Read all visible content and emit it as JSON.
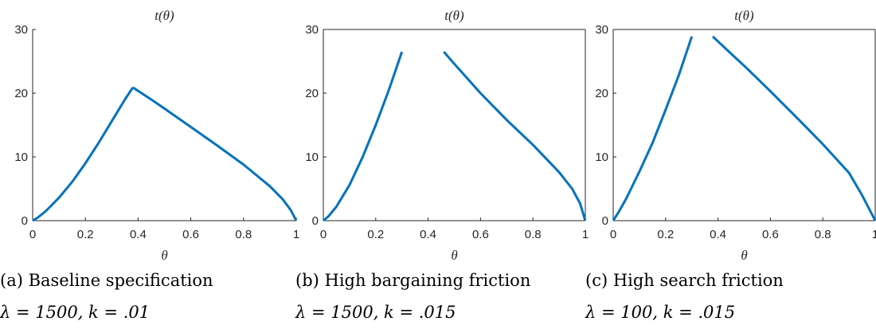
{
  "chart_data": [
    {
      "type": "line",
      "title": "t(θ)",
      "xlabel": "θ",
      "ylabel": "",
      "xlim": [
        0,
        1
      ],
      "ylim": [
        0,
        30
      ],
      "xticks": [
        "0",
        "0.2",
        "0.4",
        "0.6",
        "0.8",
        "1"
      ],
      "yticks": [
        "0",
        "10",
        "20",
        "30"
      ],
      "y_axis_side": "left",
      "box": "open",
      "caption": "(a) Baseline specification",
      "params": "λ = 1500, k = .01",
      "color": "#0072BD",
      "segments": [
        {
          "x": [
            0,
            0.02,
            0.05,
            0.1,
            0.15,
            0.2,
            0.25,
            0.3,
            0.35,
            0.38
          ],
          "y": [
            0,
            0.5,
            1.5,
            3.6,
            6.1,
            9.0,
            12.2,
            15.6,
            19.0,
            20.9
          ]
        },
        {
          "x": [
            0.38,
            0.45,
            0.5,
            0.6,
            0.7,
            0.8,
            0.9,
            0.95,
            0.98,
            1.0
          ],
          "y": [
            20.9,
            19.0,
            17.6,
            14.7,
            11.8,
            8.8,
            5.4,
            3.3,
            1.6,
            0
          ]
        }
      ]
    },
    {
      "type": "line",
      "title": "t(θ)",
      "xlabel": "θ",
      "ylabel": "",
      "xlim": [
        0,
        1
      ],
      "ylim": [
        0,
        30
      ],
      "xticks": [
        "0",
        "0.2",
        "0.4",
        "0.6",
        "0.8",
        "1"
      ],
      "yticks": [
        "0",
        "10",
        "20",
        "30"
      ],
      "y_axis_side": "left",
      "box": "full",
      "caption": "(b) High bargaining friction",
      "params": "λ = 1500, k = .015",
      "color": "#0072BD",
      "segments": [
        {
          "x": [
            0,
            0.02,
            0.05,
            0.1,
            0.15,
            0.2,
            0.25,
            0.3
          ],
          "y": [
            0,
            0.7,
            2.2,
            5.6,
            10.0,
            15.0,
            20.5,
            26.5
          ]
        },
        {
          "x": [
            0.46,
            0.5,
            0.6,
            0.7,
            0.8,
            0.9,
            0.95,
            0.98,
            1.0
          ],
          "y": [
            26.5,
            24.6,
            20.0,
            15.8,
            11.9,
            7.6,
            5.0,
            2.7,
            0
          ]
        }
      ]
    },
    {
      "type": "line",
      "title": "t(θ)",
      "xlabel": "θ",
      "ylabel": "",
      "xlim": [
        0,
        1
      ],
      "ylim": [
        0,
        30
      ],
      "xticks": [
        "0",
        "0.2",
        "0.4",
        "0.6",
        "0.8",
        "1"
      ],
      "yticks": [
        "0",
        "10",
        "20",
        "30"
      ],
      "y_axis_side": "right",
      "box": "full",
      "caption": "(c) High search friction",
      "params": "λ = 100, k = .015",
      "color": "#0072BD",
      "segments": [
        {
          "x": [
            0,
            0.02,
            0.05,
            0.1,
            0.15,
            0.2,
            0.25,
            0.3
          ],
          "y": [
            0,
            1.3,
            3.5,
            7.7,
            12.2,
            17.4,
            22.8,
            28.9
          ]
        },
        {
          "x": [
            0.38,
            0.45,
            0.5,
            0.6,
            0.7,
            0.8,
            0.9,
            0.95,
            1.0
          ],
          "y": [
            28.9,
            26.2,
            24.3,
            20.3,
            16.2,
            12.0,
            7.5,
            4.0,
            0
          ]
        }
      ]
    }
  ]
}
